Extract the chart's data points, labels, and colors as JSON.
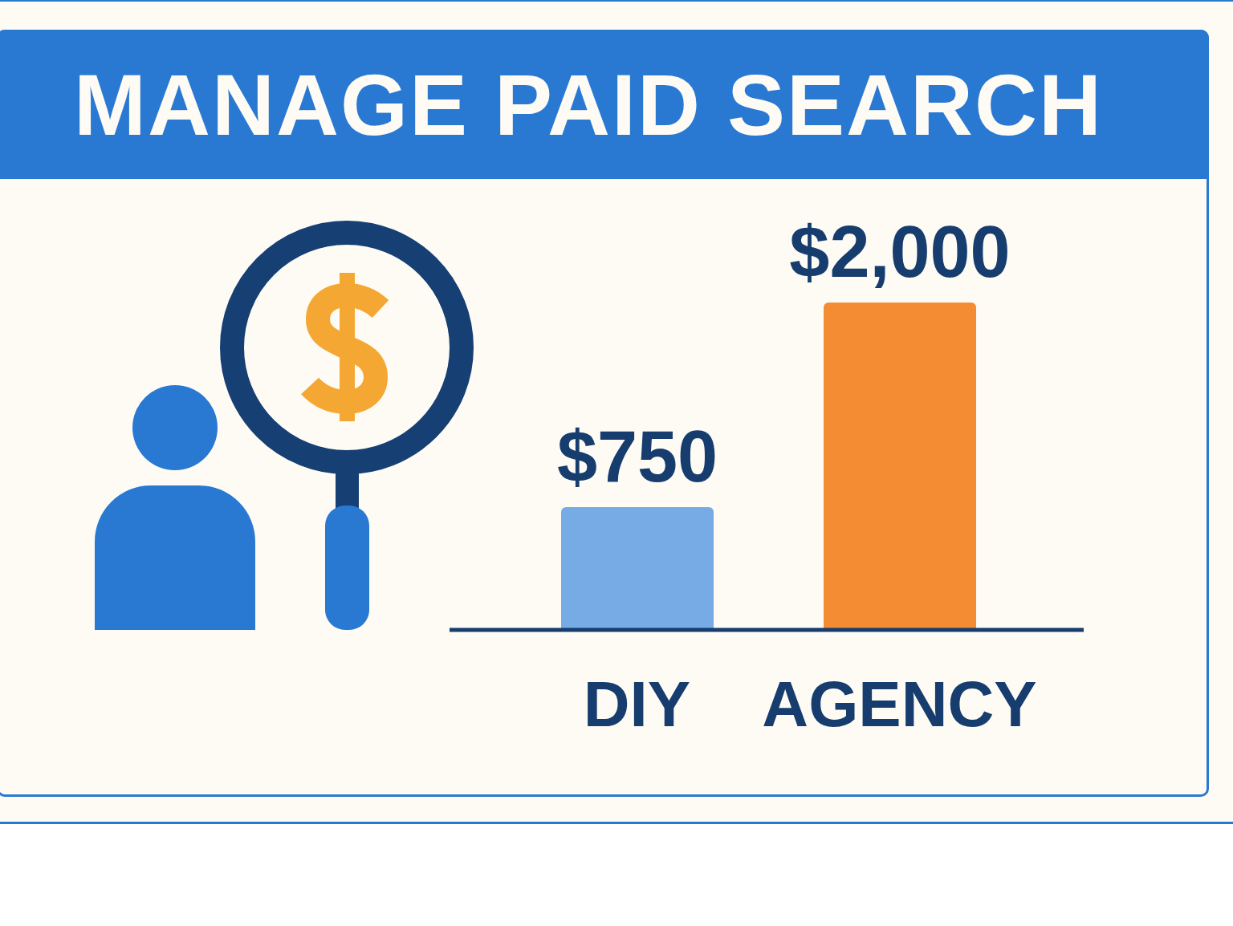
{
  "chart_data": {
    "type": "bar",
    "title": "MANAGE PAID SEARCH",
    "categories": [
      "DIY",
      "AGENCY"
    ],
    "values": [
      750,
      2000
    ],
    "colors": [
      "#77abe5",
      "#f48c34"
    ],
    "value_labels": [
      "$750",
      "$2,000"
    ]
  }
}
